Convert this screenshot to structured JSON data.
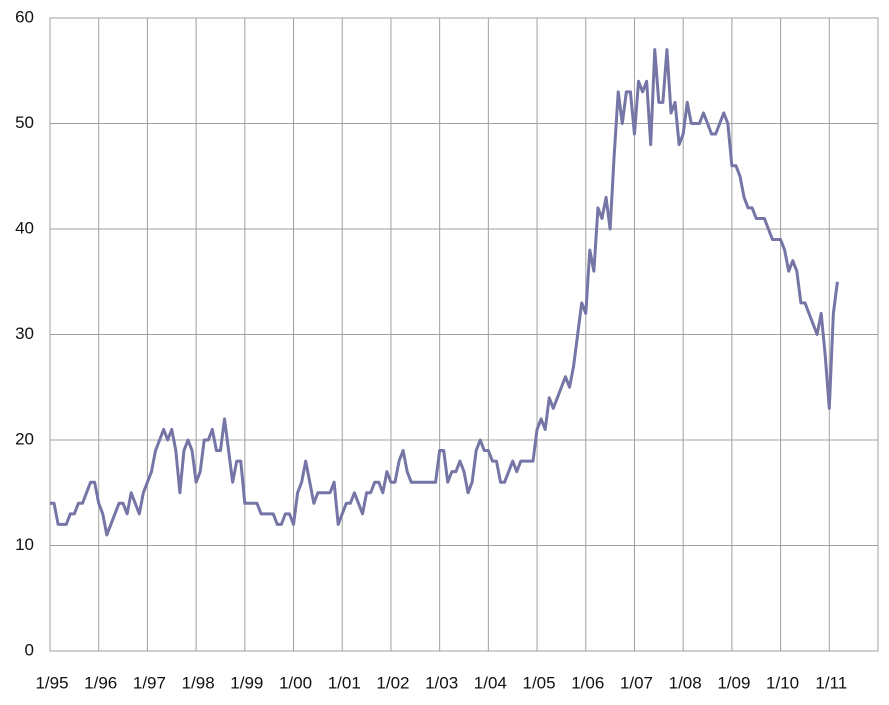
{
  "chart_data": {
    "type": "line",
    "categories": [
      "1/95",
      null,
      null,
      null,
      null,
      null,
      null,
      null,
      null,
      null,
      null,
      null,
      "1/96",
      null,
      null,
      null,
      null,
      null,
      null,
      null,
      null,
      null,
      null,
      null,
      "1/97",
      null,
      null,
      null,
      null,
      null,
      null,
      null,
      null,
      null,
      null,
      null,
      "1/98",
      null,
      null,
      null,
      null,
      null,
      null,
      null,
      null,
      null,
      null,
      null,
      "1/99",
      null,
      null,
      null,
      null,
      null,
      null,
      null,
      null,
      null,
      null,
      null,
      "1/00",
      null,
      null,
      null,
      null,
      null,
      null,
      null,
      null,
      null,
      null,
      null,
      "1/01",
      null,
      null,
      null,
      null,
      null,
      null,
      null,
      null,
      null,
      null,
      null,
      "1/02",
      null,
      null,
      null,
      null,
      null,
      null,
      null,
      null,
      null,
      null,
      null,
      "1/03",
      null,
      null,
      null,
      null,
      null,
      null,
      null,
      null,
      null,
      null,
      null,
      "1/04",
      null,
      null,
      null,
      null,
      null,
      null,
      null,
      null,
      null,
      null,
      null,
      "1/05",
      null,
      null,
      null,
      null,
      null,
      null,
      null,
      null,
      null,
      null,
      null,
      "1/06",
      null,
      null,
      null,
      null,
      null,
      null,
      null,
      null,
      null,
      null,
      null,
      "1/07",
      null,
      null,
      null,
      null,
      null,
      null,
      null,
      null,
      null,
      null,
      null,
      "1/08",
      null,
      null,
      null,
      null,
      null,
      null,
      null,
      null,
      null,
      null,
      null,
      "1/09",
      null,
      null,
      null,
      null,
      null,
      null,
      null,
      null,
      null,
      null,
      null,
      "1/10",
      null,
      null,
      null,
      null,
      null,
      null,
      null,
      null,
      null,
      null,
      null,
      "1/11",
      null,
      null
    ],
    "series": [
      {
        "color": "#7575a6",
        "values": [
          14,
          14,
          12,
          12,
          12,
          13,
          13,
          14,
          14,
          15,
          16,
          16,
          14,
          13,
          11,
          12,
          13,
          14,
          14,
          13,
          15,
          14,
          13,
          15,
          16,
          17,
          19,
          20,
          21,
          20,
          21,
          19,
          15,
          19,
          20,
          19,
          16,
          17,
          20,
          20,
          21,
          19,
          19,
          22,
          19,
          16,
          18,
          18,
          14,
          14,
          14,
          14,
          13,
          13,
          13,
          13,
          12,
          12,
          13,
          13,
          12,
          15,
          16,
          18,
          16,
          14,
          15,
          15,
          15,
          15,
          16,
          12,
          13,
          14,
          14,
          15,
          14,
          13,
          15,
          15,
          16,
          16,
          15,
          17,
          16,
          16,
          18,
          19,
          17,
          16,
          16,
          16,
          16,
          16,
          16,
          16,
          19,
          19,
          16,
          17,
          17,
          18,
          17,
          15,
          16,
          19,
          20,
          19,
          19,
          18,
          18,
          16,
          16,
          17,
          18,
          17,
          18,
          18,
          18,
          18,
          21,
          22,
          21,
          24,
          23,
          24,
          25,
          26,
          25,
          27,
          30,
          33,
          32,
          38,
          36,
          42,
          41,
          43,
          40,
          47,
          53,
          50,
          53,
          53,
          49,
          54,
          53,
          54,
          48,
          57,
          52,
          52,
          57,
          51,
          52,
          48,
          49,
          52,
          50,
          50,
          50,
          51,
          50,
          49,
          49,
          50,
          51,
          50,
          46,
          46,
          45,
          43,
          42,
          42,
          41,
          41,
          41,
          40,
          39,
          39,
          39,
          38,
          36,
          37,
          36,
          33,
          33,
          32,
          31,
          30,
          32,
          28,
          23,
          32,
          35
        ]
      }
    ],
    "ylim": [
      0,
      60
    ],
    "yticks": [
      0,
      10,
      20,
      30,
      40,
      50,
      60
    ],
    "grid": true
  }
}
